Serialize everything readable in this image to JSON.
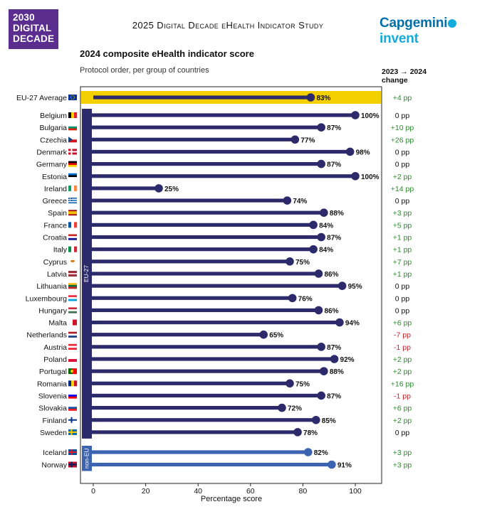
{
  "logo": {
    "line1": "2030",
    "line2": "DIGITAL",
    "line3": "DECADE"
  },
  "study_title": "2025 Digital Decade eHealth Indicator Study",
  "brand": {
    "part1": "Capgemini",
    "part2": "invent"
  },
  "colors": {
    "bar": "#2c2a6b",
    "noneu_bar": "#3b63b0",
    "highlight": "#f5d000",
    "positive": "#2e8b2e",
    "negative": "#d0202a",
    "neutral": "#111111",
    "logo_bg": "#5b2d8e"
  },
  "chart_data": {
    "type": "bar",
    "orientation": "horizontal",
    "title": "2024 composite eHealth indicator score",
    "subtitle": "Protocol order, per group of countries",
    "xlabel": "Percentage score",
    "xlim": [
      0,
      110
    ],
    "xticks": [
      "0",
      "20",
      "40",
      "60",
      "80",
      "100"
    ],
    "change_header": "2023 → 2024 change",
    "groups": [
      {
        "label": "EU-27",
        "rows": [
          1,
          27
        ]
      },
      {
        "label": "non-EU",
        "rows": [
          28,
          29
        ]
      }
    ],
    "rows": [
      {
        "country": "EU-27 Average",
        "value": 83,
        "label": "83%",
        "change": "+4 pp",
        "kind": "average",
        "flag": "eu"
      },
      {
        "country": "Belgium",
        "value": 100,
        "label": "100%",
        "change": "0 pp",
        "kind": "eu",
        "flag": "be"
      },
      {
        "country": "Bulgaria",
        "value": 87,
        "label": "87%",
        "change": "+10 pp",
        "kind": "eu",
        "flag": "bg"
      },
      {
        "country": "Czechia",
        "value": 77,
        "label": "77%",
        "change": "+26 pp",
        "kind": "eu",
        "flag": "cz"
      },
      {
        "country": "Denmark",
        "value": 98,
        "label": "98%",
        "change": "0 pp",
        "kind": "eu",
        "flag": "dk"
      },
      {
        "country": "Germany",
        "value": 87,
        "label": "87%",
        "change": "0 pp",
        "kind": "eu",
        "flag": "de"
      },
      {
        "country": "Estonia",
        "value": 100,
        "label": "100%",
        "change": "+2 pp",
        "kind": "eu",
        "flag": "ee"
      },
      {
        "country": "Ireland",
        "value": 25,
        "label": "25%",
        "change": "+14 pp",
        "kind": "eu",
        "flag": "ie"
      },
      {
        "country": "Greece",
        "value": 74,
        "label": "74%",
        "change": "0 pp",
        "kind": "eu",
        "flag": "gr"
      },
      {
        "country": "Spain",
        "value": 88,
        "label": "88%",
        "change": "+3 pp",
        "kind": "eu",
        "flag": "es"
      },
      {
        "country": "France",
        "value": 84,
        "label": "84%",
        "change": "+5 pp",
        "kind": "eu",
        "flag": "fr"
      },
      {
        "country": "Croatia",
        "value": 87,
        "label": "87%",
        "change": "+1 pp",
        "kind": "eu",
        "flag": "hr"
      },
      {
        "country": "Italy",
        "value": 84,
        "label": "84%",
        "change": "+1 pp",
        "kind": "eu",
        "flag": "it"
      },
      {
        "country": "Cyprus",
        "value": 75,
        "label": "75%",
        "change": "+7 pp",
        "kind": "eu",
        "flag": "cy"
      },
      {
        "country": "Latvia",
        "value": 86,
        "label": "86%",
        "change": "+1 pp",
        "kind": "eu",
        "flag": "lv"
      },
      {
        "country": "Lithuania",
        "value": 95,
        "label": "95%",
        "change": "0 pp",
        "kind": "eu",
        "flag": "lt"
      },
      {
        "country": "Luxembourg",
        "value": 76,
        "label": "76%",
        "change": "0 pp",
        "kind": "eu",
        "flag": "lu"
      },
      {
        "country": "Hungary",
        "value": 86,
        "label": "86%",
        "change": "0 pp",
        "kind": "eu",
        "flag": "hu"
      },
      {
        "country": "Malta",
        "value": 94,
        "label": "94%",
        "change": "+6 pp",
        "kind": "eu",
        "flag": "mt"
      },
      {
        "country": "Netherlands",
        "value": 65,
        "label": "65%",
        "change": "-7 pp",
        "kind": "eu",
        "flag": "nl"
      },
      {
        "country": "Austria",
        "value": 87,
        "label": "87%",
        "change": "-1 pp",
        "kind": "eu",
        "flag": "at"
      },
      {
        "country": "Poland",
        "value": 92,
        "label": "92%",
        "change": "+2 pp",
        "kind": "eu",
        "flag": "pl"
      },
      {
        "country": "Portugal",
        "value": 88,
        "label": "88%",
        "change": "+2 pp",
        "kind": "eu",
        "flag": "pt"
      },
      {
        "country": "Romania",
        "value": 75,
        "label": "75%",
        "change": "+16 pp",
        "kind": "eu",
        "flag": "ro"
      },
      {
        "country": "Slovenia",
        "value": 87,
        "label": "87%",
        "change": "-1 pp",
        "kind": "eu",
        "flag": "si"
      },
      {
        "country": "Slovakia",
        "value": 72,
        "label": "72%",
        "change": "+6 pp",
        "kind": "eu",
        "flag": "sk"
      },
      {
        "country": "Finland",
        "value": 85,
        "label": "85%",
        "change": "+2 pp",
        "kind": "eu",
        "flag": "fi"
      },
      {
        "country": "Sweden",
        "value": 78,
        "label": "78%",
        "change": "0 pp",
        "kind": "eu",
        "flag": "se"
      },
      {
        "country": "Iceland",
        "value": 82,
        "label": "82%",
        "change": "+3 pp",
        "kind": "noneu",
        "flag": "is"
      },
      {
        "country": "Norway",
        "value": 91,
        "label": "91%",
        "change": "+3 pp",
        "kind": "noneu",
        "flag": "no"
      }
    ]
  }
}
